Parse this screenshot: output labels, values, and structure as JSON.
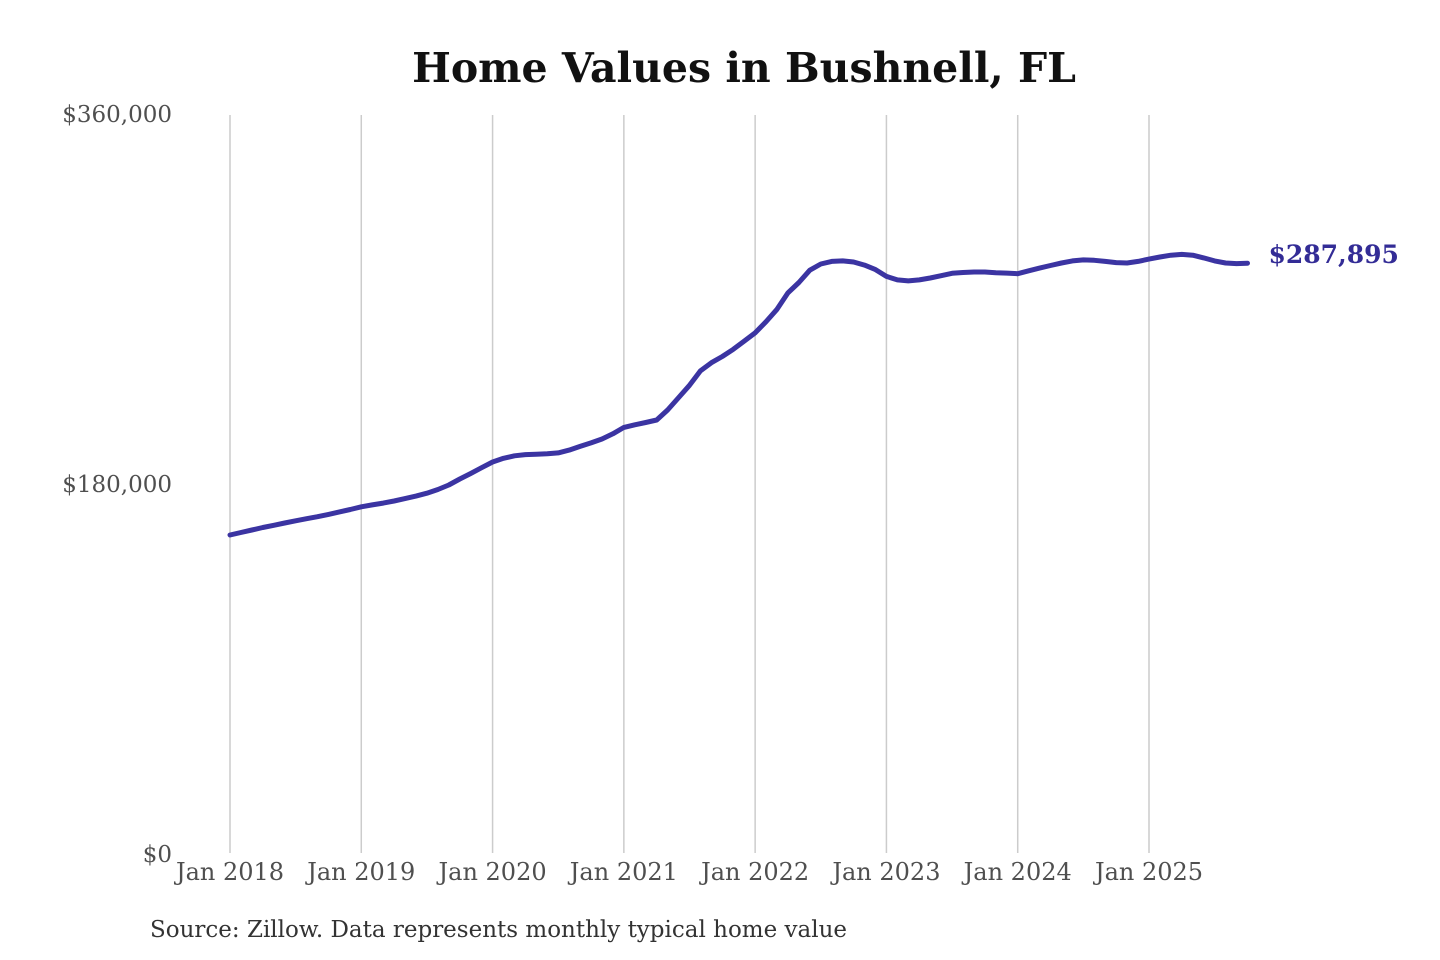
{
  "chart_data": {
    "type": "line",
    "title": "Home Values in Bushnell, FL",
    "source_note": "Source: Zillow. Data represents monthly typical home value",
    "end_label": "$287,895",
    "latest_value": 287895,
    "xlabel": "",
    "ylabel": "",
    "legend": "none",
    "grid": "vertical",
    "ylim": [
      0,
      360000
    ],
    "y_ticks": [
      {
        "label": "$0",
        "value": 0
      },
      {
        "label": "$180,000",
        "value": 180000
      },
      {
        "label": "$360,000",
        "value": 360000
      }
    ],
    "x_tick_labels": [
      "Jan 2018",
      "Jan 2019",
      "Jan 2020",
      "Jan 2021",
      "Jan 2022",
      "Jan 2023",
      "Jan 2024",
      "Jan 2025"
    ],
    "x_tick_month_indices": [
      0,
      12,
      24,
      36,
      48,
      60,
      72,
      84
    ],
    "x_months": [
      "2018-01",
      "2018-02",
      "2018-03",
      "2018-04",
      "2018-05",
      "2018-06",
      "2018-07",
      "2018-08",
      "2018-09",
      "2018-10",
      "2018-11",
      "2018-12",
      "2019-01",
      "2019-02",
      "2019-03",
      "2019-04",
      "2019-05",
      "2019-06",
      "2019-07",
      "2019-08",
      "2019-09",
      "2019-10",
      "2019-11",
      "2019-12",
      "2020-01",
      "2020-02",
      "2020-03",
      "2020-04",
      "2020-05",
      "2020-06",
      "2020-07",
      "2020-08",
      "2020-09",
      "2020-10",
      "2020-11",
      "2020-12",
      "2021-01",
      "2021-02",
      "2021-03",
      "2021-04",
      "2021-05",
      "2021-06",
      "2021-07",
      "2021-08",
      "2021-09",
      "2021-10",
      "2021-11",
      "2021-12",
      "2022-01",
      "2022-02",
      "2022-03",
      "2022-04",
      "2022-05",
      "2022-06",
      "2022-07",
      "2022-08",
      "2022-09",
      "2022-10",
      "2022-11",
      "2022-12",
      "2023-01",
      "2023-02",
      "2023-03",
      "2023-04",
      "2023-05",
      "2023-06",
      "2023-07",
      "2023-08",
      "2023-09",
      "2023-10",
      "2023-11",
      "2023-12",
      "2024-01",
      "2024-02",
      "2024-03",
      "2024-04",
      "2024-05",
      "2024-06",
      "2024-07",
      "2024-08",
      "2024-09",
      "2024-10",
      "2024-11",
      "2024-12",
      "2025-01",
      "2025-02",
      "2025-03",
      "2025-04",
      "2025-05",
      "2025-06",
      "2025-07",
      "2025-08",
      "2025-09",
      "2025-10"
    ],
    "values": [
      155700,
      156900,
      158100,
      159300,
      160400,
      161500,
      162600,
      163600,
      164600,
      165700,
      166900,
      168100,
      169400,
      170300,
      171200,
      172200,
      173400,
      174600,
      176000,
      177800,
      180000,
      182900,
      185600,
      188400,
      191200,
      193000,
      194200,
      194800,
      195000,
      195200,
      195600,
      197000,
      198800,
      200500,
      202400,
      204900,
      208000,
      209300,
      210400,
      211600,
      216500,
      222500,
      228500,
      235500,
      239500,
      242500,
      246000,
      250000,
      254000,
      259500,
      265500,
      273500,
      278500,
      284500,
      287500,
      288800,
      289000,
      288500,
      287000,
      284800,
      281500,
      279800,
      279300,
      279800,
      280700,
      281800,
      283000,
      283400,
      283600,
      283600,
      283300,
      283100,
      282800,
      284200,
      285500,
      286800,
      288000,
      289000,
      289500,
      289300,
      288800,
      288200,
      288000,
      288800,
      289900,
      290900,
      291800,
      292200,
      291800,
      290500,
      289000,
      288000,
      287700,
      287895
    ],
    "colors": {
      "line": "#3b34a2",
      "end_label": "#332c96",
      "grid": "#cccccc",
      "axis_text": "#4f4f4f",
      "title": "#111111",
      "source": "#333333"
    }
  }
}
